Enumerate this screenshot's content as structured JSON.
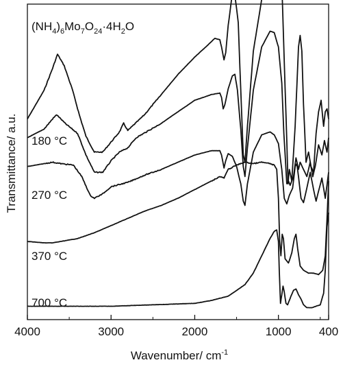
{
  "chart_data": {
    "type": "line",
    "xlabel": "Wavenumber/ cm",
    "xlabel_sup": "-1",
    "ylabel": "Transmittance/ a.u.",
    "xlim": [
      4000,
      400
    ],
    "x_reversed": true,
    "x_ticks": [
      4000,
      3000,
      2000,
      1000,
      400
    ],
    "x_tick_labels": [
      "4000",
      "3000",
      "2000",
      "1000",
      "400"
    ],
    "y_ticks_shown": false,
    "grid": false,
    "legend": "none",
    "line_color": "#111111",
    "series": [
      {
        "name": "(NH4)6Mo7O24·4H2O",
        "points": [
          [
            4000,
            -55
          ],
          [
            3800,
            -35
          ],
          [
            3700,
            -20
          ],
          [
            3640,
            -10
          ],
          [
            3560,
            -18
          ],
          [
            3460,
            -35
          ],
          [
            3380,
            -52
          ],
          [
            3300,
            -67
          ],
          [
            3200,
            -78
          ],
          [
            3100,
            -78
          ],
          [
            3000,
            -71
          ],
          [
            2900,
            -64
          ],
          [
            2850,
            -58
          ],
          [
            2800,
            -63
          ],
          [
            2600,
            -52
          ],
          [
            2400,
            -38
          ],
          [
            2200,
            -24
          ],
          [
            2000,
            -12
          ],
          [
            1850,
            -4
          ],
          [
            1760,
            1
          ],
          [
            1700,
            0
          ],
          [
            1680,
            -5
          ],
          [
            1650,
            -14
          ],
          [
            1630,
            -9
          ],
          [
            1600,
            10
          ],
          [
            1560,
            28
          ],
          [
            1520,
            31
          ],
          [
            1480,
            12
          ],
          [
            1450,
            -35
          ],
          [
            1420,
            -80
          ],
          [
            1400,
            -85
          ],
          [
            1370,
            -60
          ],
          [
            1300,
            -8
          ],
          [
            1200,
            28
          ],
          [
            1100,
            60
          ],
          [
            1040,
            71
          ],
          [
            1000,
            68
          ],
          [
            960,
            40
          ],
          [
            930,
            -15
          ],
          [
            900,
            -70
          ],
          [
            885,
            -100
          ],
          [
            870,
            -90
          ],
          [
            840,
            -98
          ],
          [
            800,
            -60
          ],
          [
            760,
            -5
          ],
          [
            740,
            3
          ],
          [
            720,
            -8
          ],
          [
            700,
            -45
          ],
          [
            670,
            -85
          ],
          [
            640,
            -78
          ],
          [
            610,
            -88
          ],
          [
            580,
            -92
          ],
          [
            550,
            -65
          ],
          [
            520,
            -50
          ],
          [
            490,
            -42
          ],
          [
            460,
            -60
          ],
          [
            440,
            -50
          ],
          [
            420,
            -48
          ],
          [
            400,
            -55
          ]
        ]
      },
      {
        "name": "180 °C",
        "points": [
          [
            4000,
            -68
          ],
          [
            3800,
            -62
          ],
          [
            3700,
            -55
          ],
          [
            3650,
            -52
          ],
          [
            3550,
            -58
          ],
          [
            3400,
            -65
          ],
          [
            3300,
            -80
          ],
          [
            3200,
            -92
          ],
          [
            3100,
            -92
          ],
          [
            3000,
            -84
          ],
          [
            2900,
            -78
          ],
          [
            2800,
            -75
          ],
          [
            2700,
            -68
          ],
          [
            2400,
            -58
          ],
          [
            2200,
            -50
          ],
          [
            2000,
            -42
          ],
          [
            1800,
            -38
          ],
          [
            1700,
            -37
          ],
          [
            1680,
            -40
          ],
          [
            1660,
            -48
          ],
          [
            1640,
            -45
          ],
          [
            1600,
            -34
          ],
          [
            1550,
            -25
          ],
          [
            1520,
            -24
          ],
          [
            1490,
            -35
          ],
          [
            1450,
            -62
          ],
          [
            1420,
            -88
          ],
          [
            1400,
            -95
          ],
          [
            1370,
            -75
          ],
          [
            1300,
            -35
          ],
          [
            1200,
            -5
          ],
          [
            1100,
            6
          ],
          [
            1050,
            5
          ],
          [
            1000,
            -5
          ],
          [
            960,
            -30
          ],
          [
            935,
            -65
          ],
          [
            900,
            -100
          ],
          [
            880,
            -98
          ],
          [
            860,
            -101
          ],
          [
            820,
            -95
          ],
          [
            790,
            -82
          ],
          [
            760,
            -90
          ],
          [
            740,
            -85
          ],
          [
            700,
            -90
          ],
          [
            660,
            -95
          ],
          [
            620,
            -85
          ],
          [
            590,
            -95
          ],
          [
            560,
            -88
          ],
          [
            520,
            -73
          ],
          [
            480,
            -80
          ],
          [
            450,
            -70
          ],
          [
            420,
            -78
          ],
          [
            400,
            -68
          ]
        ]
      },
      {
        "name": "270 °C",
        "points": [
          [
            4000,
            -88
          ],
          [
            3800,
            -86
          ],
          [
            3700,
            -85
          ],
          [
            3600,
            -86
          ],
          [
            3450,
            -87
          ],
          [
            3350,
            -95
          ],
          [
            3250,
            -108
          ],
          [
            3200,
            -110
          ],
          [
            3100,
            -107
          ],
          [
            3000,
            -102
          ],
          [
            2800,
            -99
          ],
          [
            2600,
            -94
          ],
          [
            2400,
            -90
          ],
          [
            2200,
            -85
          ],
          [
            2000,
            -80
          ],
          [
            1800,
            -77
          ],
          [
            1700,
            -77
          ],
          [
            1680,
            -80
          ],
          [
            1650,
            -89
          ],
          [
            1630,
            -84
          ],
          [
            1600,
            -79
          ],
          [
            1550,
            -81
          ],
          [
            1500,
            -88
          ],
          [
            1450,
            -100
          ],
          [
            1420,
            -112
          ],
          [
            1400,
            -115
          ],
          [
            1370,
            -100
          ],
          [
            1300,
            -78
          ],
          [
            1200,
            -66
          ],
          [
            1100,
            -64
          ],
          [
            1050,
            -66
          ],
          [
            1000,
            -72
          ],
          [
            960,
            -90
          ],
          [
            930,
            -110
          ],
          [
            900,
            -114
          ],
          [
            870,
            -108
          ],
          [
            830,
            -103
          ],
          [
            800,
            -88
          ],
          [
            780,
            -86
          ],
          [
            760,
            -95
          ],
          [
            730,
            -110
          ],
          [
            700,
            -113
          ],
          [
            660,
            -103
          ],
          [
            620,
            -92
          ],
          [
            580,
            -104
          ],
          [
            550,
            -112
          ],
          [
            520,
            -105
          ],
          [
            480,
            -96
          ],
          [
            440,
            -110
          ],
          [
            400,
            -92
          ]
        ]
      },
      {
        "name": "370 °C",
        "points": [
          [
            4000,
            -140
          ],
          [
            3800,
            -141
          ],
          [
            3700,
            -141
          ],
          [
            3600,
            -140
          ],
          [
            3400,
            -138
          ],
          [
            3200,
            -134
          ],
          [
            3000,
            -129
          ],
          [
            2800,
            -124
          ],
          [
            2600,
            -119
          ],
          [
            2400,
            -115
          ],
          [
            2200,
            -110
          ],
          [
            2000,
            -104
          ],
          [
            1800,
            -98
          ],
          [
            1700,
            -95
          ],
          [
            1650,
            -96
          ],
          [
            1600,
            -90
          ],
          [
            1500,
            -87
          ],
          [
            1400,
            -85
          ],
          [
            1300,
            -86
          ],
          [
            1200,
            -85
          ],
          [
            1100,
            -86
          ],
          [
            1050,
            -87
          ],
          [
            1020,
            -90
          ],
          [
            1000,
            -110
          ],
          [
            985,
            -140
          ],
          [
            970,
            -150
          ],
          [
            955,
            -135
          ],
          [
            940,
            -138
          ],
          [
            920,
            -152
          ],
          [
            880,
            -155
          ],
          [
            840,
            -148
          ],
          [
            810,
            -138
          ],
          [
            790,
            -135
          ],
          [
            770,
            -145
          ],
          [
            740,
            -157
          ],
          [
            700,
            -160
          ],
          [
            640,
            -162
          ],
          [
            580,
            -162
          ],
          [
            520,
            -163
          ],
          [
            470,
            -160
          ],
          [
            440,
            -150
          ],
          [
            420,
            -125
          ],
          [
            400,
            -98
          ]
        ]
      },
      {
        "name": "700 °C",
        "points": [
          [
            4000,
            -185
          ],
          [
            3500,
            -185
          ],
          [
            3000,
            -185
          ],
          [
            2500,
            -184
          ],
          [
            2000,
            -183
          ],
          [
            1800,
            -181
          ],
          [
            1600,
            -178
          ],
          [
            1400,
            -170
          ],
          [
            1300,
            -162
          ],
          [
            1200,
            -150
          ],
          [
            1100,
            -138
          ],
          [
            1050,
            -133
          ],
          [
            1020,
            -132
          ],
          [
            1000,
            -140
          ],
          [
            990,
            -160
          ],
          [
            975,
            -183
          ],
          [
            960,
            -177
          ],
          [
            945,
            -171
          ],
          [
            930,
            -175
          ],
          [
            910,
            -183
          ],
          [
            890,
            -184
          ],
          [
            850,
            -178
          ],
          [
            820,
            -174
          ],
          [
            790,
            -173
          ],
          [
            760,
            -177
          ],
          [
            730,
            -180
          ],
          [
            700,
            -184
          ],
          [
            660,
            -186
          ],
          [
            600,
            -186
          ],
          [
            550,
            -185
          ],
          [
            500,
            -184
          ],
          [
            460,
            -176
          ],
          [
            440,
            -160
          ],
          [
            420,
            -130
          ],
          [
            400,
            -120
          ]
        ]
      }
    ],
    "labels": [
      {
        "text": "(NH",
        "series": 0
      },
      {
        "text": "180 °C",
        "series": 1
      },
      {
        "text": "270 °C",
        "series": 2
      },
      {
        "text": "370 °C",
        "series": 3
      },
      {
        "text": "700 °C",
        "series": 4
      }
    ],
    "formula_parts": {
      "a": "(NH",
      "b": "4",
      "c": ")",
      "d": "6",
      "e": "Mo",
      "f": "7",
      "g": "O",
      "h": "24",
      "i": "·4H",
      "j": "2",
      "k": "O"
    }
  }
}
